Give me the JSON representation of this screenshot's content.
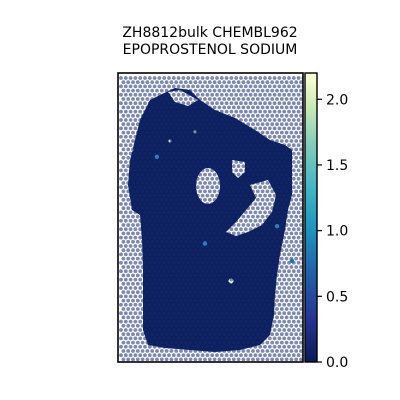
{
  "chart_data": {
    "type": "scatter",
    "title_line1": "ZH8812bulk CHEMBL962",
    "title_line2": "EPOPROSTENOL SODIUM",
    "colormap": "YlGnBu",
    "colors": {
      "low": "#0d1f5c",
      "mid": "#2a8ec0",
      "high": "#ffffd9",
      "background": "#ffffff",
      "frame": "#000000"
    },
    "colorbar": {
      "min": 0.0,
      "max": 2.2,
      "ticks": [
        0.0,
        0.5,
        1.0,
        1.5,
        2.0
      ],
      "tick_labels": [
        "0.0",
        "0.5",
        "1.0",
        "1.5",
        "2.0"
      ]
    },
    "highlighted_spots": [
      {
        "x": 0.21,
        "y": 0.71,
        "value": 1.15
      },
      {
        "x": 0.47,
        "y": 0.41,
        "value": 1.0
      },
      {
        "x": 0.86,
        "y": 0.47,
        "value": 0.95
      },
      {
        "x": 0.94,
        "y": 0.35,
        "value": 0.9
      }
    ],
    "baseline_value": 0.0
  }
}
